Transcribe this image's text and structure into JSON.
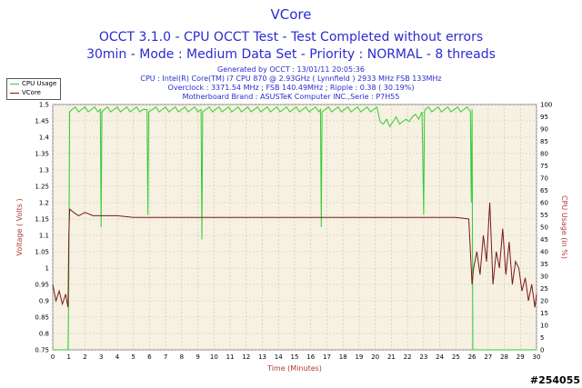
{
  "chart_data": {
    "type": "line",
    "title": "VCore",
    "subtitle_1": "OCCT 3.1.0 - CPU OCCT Test - Test Completed without errors",
    "subtitle_2": "30min - Mode : Medium Data Set - Priority : NORMAL - 8 threads",
    "info_lines": [
      "Generated by OCCT : 13/01/11 20:05:36",
      "CPU : Intel(R) Core(TM) i7 CPU 870 @ 2.93GHz ( Lynnfield ) 2933 MHz FSB 133MHz",
      "Overclock : 3371.54 MHz ; FSB 140.49MHz ; Ripple : 0.38 ( 30.19%)",
      "Motherboard Brand : ASUSTeK Computer INC.,Serie : P7H55"
    ],
    "xlabel": "Time (Minutes)",
    "ylabel_left": "Voltage ( Volts )",
    "ylabel_right": "CPU Usage (in %)",
    "xlim": [
      0,
      30
    ],
    "ylim_left": [
      0.75,
      1.5
    ],
    "ylim_right": [
      0,
      100
    ],
    "x_ticks": [
      "0",
      "1",
      "2",
      "3",
      "4",
      "5",
      "6",
      "7",
      "8",
      "9",
      "10",
      "11",
      "12",
      "13",
      "14",
      "15",
      "16",
      "17",
      "18",
      "19",
      "20",
      "21",
      "22",
      "23",
      "24",
      "25",
      "26",
      "27",
      "28",
      "29",
      "30"
    ],
    "y_left_ticks": [
      "0.75",
      "0.8",
      "0.85",
      "0.9",
      "0.95",
      "1",
      "1.05",
      "1.1",
      "1.15",
      "1.2",
      "1.25",
      "1.3",
      "1.35",
      "1.4",
      "1.45",
      "1.5"
    ],
    "y_right_ticks": [
      "0",
      "5",
      "10",
      "15",
      "20",
      "25",
      "30",
      "35",
      "40",
      "45",
      "50",
      "55",
      "60",
      "65",
      "70",
      "75",
      "80",
      "85",
      "90",
      "95",
      "100"
    ],
    "grid": true,
    "legend": [
      {
        "name": "CPU Usage",
        "color": "#33cc33"
      },
      {
        "name": "VCore",
        "color": "#7a1a1a"
      }
    ],
    "series": [
      {
        "name": "CPU Usage",
        "axis": "right",
        "color": "#33cc33",
        "x": [
          0,
          0.95,
          1.0,
          1.05,
          1.2,
          1.4,
          1.6,
          1.8,
          2.0,
          2.2,
          2.4,
          2.6,
          2.8,
          2.95,
          3.0,
          3.05,
          3.2,
          3.4,
          3.6,
          3.8,
          4.0,
          4.2,
          4.4,
          4.6,
          4.8,
          5.0,
          5.2,
          5.4,
          5.6,
          5.85,
          5.9,
          5.95,
          6.2,
          6.4,
          6.6,
          6.8,
          7.0,
          7.2,
          7.4,
          7.6,
          7.8,
          8.0,
          8.2,
          8.4,
          8.6,
          8.8,
          9.0,
          9.2,
          9.25,
          9.3,
          9.5,
          9.7,
          9.9,
          10.1,
          10.3,
          10.5,
          10.7,
          10.9,
          11.1,
          11.3,
          11.5,
          11.7,
          11.9,
          12.1,
          12.3,
          12.5,
          12.7,
          12.9,
          13.1,
          13.3,
          13.5,
          13.7,
          13.9,
          14.1,
          14.3,
          14.5,
          14.7,
          14.9,
          15.1,
          15.3,
          15.5,
          15.7,
          15.9,
          16.1,
          16.3,
          16.5,
          16.6,
          16.65,
          16.7,
          16.9,
          17.1,
          17.3,
          17.5,
          17.7,
          17.9,
          18.1,
          18.3,
          18.5,
          18.7,
          18.9,
          19.1,
          19.3,
          19.5,
          19.7,
          19.9,
          20.1,
          20.3,
          20.5,
          20.7,
          20.9,
          21.1,
          21.3,
          21.5,
          21.7,
          21.9,
          22.1,
          22.3,
          22.5,
          22.7,
          22.9,
          23.0,
          23.05,
          23.1,
          23.3,
          23.5,
          23.7,
          23.9,
          24.1,
          24.3,
          24.5,
          24.7,
          24.9,
          25.1,
          25.3,
          25.5,
          25.7,
          25.9,
          25.95,
          26.0,
          26.05,
          26.2,
          27,
          28,
          29,
          30
        ],
        "y": [
          0,
          0,
          30,
          97,
          98,
          99,
          97,
          98,
          99,
          97,
          98,
          99,
          97,
          98,
          50,
          97,
          98,
          99,
          97,
          98,
          99,
          97,
          98,
          99,
          97,
          98,
          99,
          97,
          98,
          98,
          55,
          97,
          98,
          99,
          97,
          98,
          99,
          97,
          98,
          99,
          97,
          98,
          99,
          97,
          98,
          99,
          97,
          98,
          45,
          97,
          98,
          99,
          97,
          98,
          99,
          97,
          98,
          99,
          97,
          98,
          99,
          97,
          98,
          99,
          97,
          98,
          99,
          97,
          98,
          99,
          97,
          98,
          99,
          97,
          98,
          99,
          97,
          98,
          99,
          97,
          98,
          99,
          97,
          98,
          99,
          97,
          98,
          50,
          97,
          98,
          99,
          97,
          98,
          99,
          97,
          98,
          99,
          97,
          98,
          99,
          97,
          98,
          99,
          97,
          98,
          99,
          93,
          92,
          94,
          91,
          93,
          95,
          92,
          93,
          94,
          93,
          95,
          96,
          94,
          97,
          55,
          97,
          98,
          99,
          97,
          98,
          99,
          97,
          98,
          99,
          97,
          98,
          99,
          97,
          98,
          99,
          97,
          60,
          98,
          0,
          0,
          0,
          0,
          0,
          0
        ]
      },
      {
        "name": "VCore",
        "axis": "left",
        "color": "#7a1a1a",
        "x": [
          0,
          0.2,
          0.4,
          0.6,
          0.8,
          0.95,
          1.0,
          1.05,
          1.3,
          1.6,
          2.0,
          2.5,
          3,
          4,
          5,
          6,
          7,
          8,
          9,
          10,
          11,
          12,
          13,
          14,
          15,
          16,
          17,
          18,
          19,
          20,
          21,
          22,
          23,
          24,
          25,
          25.8,
          26.0,
          26.1,
          26.3,
          26.5,
          26.7,
          26.9,
          27.1,
          27.3,
          27.5,
          27.7,
          27.9,
          28.1,
          28.3,
          28.5,
          28.7,
          28.9,
          29.1,
          29.3,
          29.5,
          29.7,
          29.9,
          30
        ],
        "y": [
          0.95,
          0.9,
          0.93,
          0.89,
          0.92,
          0.88,
          1.1,
          1.18,
          1.17,
          1.16,
          1.17,
          1.16,
          1.16,
          1.16,
          1.155,
          1.155,
          1.155,
          1.155,
          1.155,
          1.155,
          1.155,
          1.155,
          1.155,
          1.155,
          1.155,
          1.155,
          1.155,
          1.155,
          1.155,
          1.155,
          1.155,
          1.155,
          1.155,
          1.155,
          1.155,
          1.15,
          0.95,
          1.0,
          1.05,
          0.98,
          1.1,
          1.02,
          1.2,
          0.95,
          1.05,
          1.0,
          1.12,
          0.98,
          1.08,
          0.95,
          1.02,
          1.0,
          0.93,
          0.97,
          0.9,
          0.95,
          0.88,
          0.92
        ]
      }
    ]
  },
  "watermark": "#254055"
}
